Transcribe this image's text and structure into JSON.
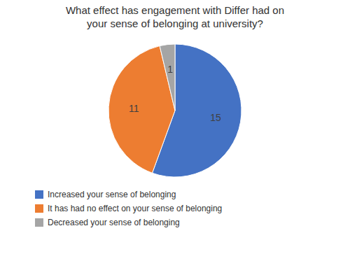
{
  "chart_data": {
    "type": "pie",
    "title": "What effect has engagement with Differ had on\nyour sense of belonging at university?",
    "categories": [
      "Increased your sense of belonging",
      "It has had no effect on your sense of belonging",
      "Decreased your sense of belonging"
    ],
    "values": [
      15,
      11,
      1
    ],
    "colors": [
      "#4472C4",
      "#ED7D31",
      "#A5A5A5"
    ],
    "data_labels": true,
    "legend": "bottom"
  }
}
